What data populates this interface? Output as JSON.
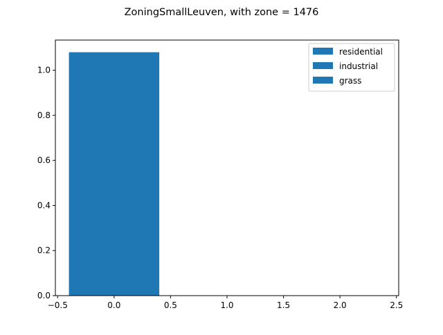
{
  "chart_data": {
    "type": "bar",
    "title": "ZoningSmallLeuven, with zone = 1476",
    "xlabel": "",
    "ylabel": "",
    "xlim": [
      -0.52,
      2.52
    ],
    "ylim": [
      0,
      1.134
    ],
    "x_ticks": [
      -0.5,
      0.0,
      0.5,
      1.0,
      1.5,
      2.0,
      2.5
    ],
    "x_tick_labels": [
      "−0.5",
      "0.0",
      "0.5",
      "1.0",
      "1.5",
      "2.0",
      "2.5"
    ],
    "y_ticks": [
      0.0,
      0.2,
      0.4,
      0.6,
      0.8,
      1.0
    ],
    "y_tick_labels": [
      "0.0",
      "0.2",
      "0.4",
      "0.6",
      "0.8",
      "1.0"
    ],
    "bar_width": 0.8,
    "grid": false,
    "legend_position": "top-right",
    "series": [
      {
        "name": "residential",
        "x": [
          0
        ],
        "values": [
          1.08
        ],
        "color": "#1f77b4"
      },
      {
        "name": "industrial",
        "x": [
          1
        ],
        "values": [
          0
        ],
        "color": "#1f77b4"
      },
      {
        "name": "grass",
        "x": [
          2
        ],
        "values": [
          0
        ],
        "color": "#1f77b4"
      }
    ]
  }
}
